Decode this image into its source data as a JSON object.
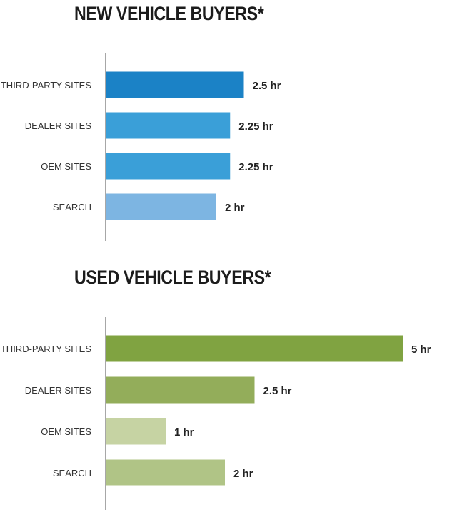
{
  "chart_data": [
    {
      "type": "bar",
      "orientation": "horizontal",
      "title": "NEW VEHICLE BUYERS*",
      "categories": [
        "THIRD-PARTY SITES",
        "DEALER SITES",
        "OEM SITES",
        "SEARCH"
      ],
      "values": [
        2.5,
        2.25,
        2.25,
        2
      ],
      "value_labels": [
        "2.5 hr",
        "2.25 hr",
        "2.25 hr",
        "2 hr"
      ],
      "colors": [
        "#1b82c6",
        "#3a9fd8",
        "#3a9fd8",
        "#7db5e2"
      ],
      "xlabel": "",
      "ylabel": "",
      "grid": false
    },
    {
      "type": "bar",
      "orientation": "horizontal",
      "title": "USED VEHICLE BUYERS*",
      "categories": [
        "THIRD-PARTY SITES",
        "DEALER SITES",
        "OEM SITES",
        "SEARCH"
      ],
      "values": [
        5,
        2.5,
        1,
        2
      ],
      "value_labels": [
        "5 hr",
        "2.5 hr",
        "1 hr",
        "2 hr"
      ],
      "colors": [
        "#80a341",
        "#93ad5a",
        "#c6d3a3",
        "#b0c486"
      ],
      "xlabel": "",
      "ylabel": "",
      "grid": false
    }
  ]
}
